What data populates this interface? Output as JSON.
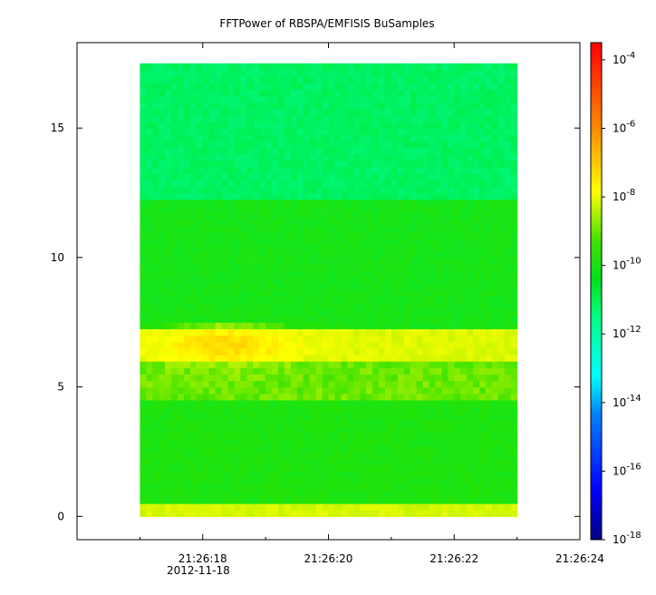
{
  "chart_data": {
    "type": "heatmap",
    "title": "FFTPower of RBSPA/EMFISIS  BuSamples",
    "xlabel": "",
    "ylabel": "",
    "x_tick_labels": [
      "21:26:18",
      "21:26:20",
      "21:26:22",
      "21:26:24"
    ],
    "x_tick_values_sec": [
      18,
      20,
      22,
      24
    ],
    "x_minor_ticks_sec": [
      17,
      19,
      21,
      23
    ],
    "x_date_label": "2012-11-18",
    "xlim_sec": [
      16.0,
      24.0
    ],
    "data_x_range_sec": [
      17.0,
      23.0
    ],
    "y_tick_labels": [
      "0",
      "5",
      "10",
      "15"
    ],
    "y_tick_values": [
      0,
      5,
      10,
      15
    ],
    "ylim": [
      -0.9,
      18.3
    ],
    "data_y_range": [
      0,
      17.5
    ],
    "colorbar": {
      "scale": "log",
      "range_exponent": [
        -18,
        -3.5
      ],
      "tick_exponents": [
        -18,
        -16,
        -14,
        -12,
        -10,
        -8,
        -6,
        -4
      ],
      "tick_labels": [
        {
          "base": "10",
          "exp": "-18"
        },
        {
          "base": "10",
          "exp": "-16"
        },
        {
          "base": "10",
          "exp": "-14"
        },
        {
          "base": "10",
          "exp": "-12"
        },
        {
          "base": "10",
          "exp": "-10"
        },
        {
          "base": "10",
          "exp": "-8"
        },
        {
          "base": "10",
          "exp": "-6"
        },
        {
          "base": "10",
          "exp": "-4"
        }
      ]
    },
    "bands": [
      {
        "y_range": [
          0,
          0.6
        ],
        "log10_power": -8.6
      },
      {
        "y_range": [
          0.6,
          4.5
        ],
        "log10_power": -10.4
      },
      {
        "y_range": [
          4.5,
          5.9
        ],
        "log10_power": -9.6
      },
      {
        "y_range": [
          5.9,
          7.3
        ],
        "log10_power": -8.5
      },
      {
        "y_range": [
          7.3,
          12.2
        ],
        "log10_power": -10.6
      },
      {
        "y_range": [
          12.2,
          17.5
        ],
        "log10_power": -12.0
      }
    ],
    "hotspot": {
      "x_sec": 18.4,
      "y": 6.6,
      "log10_power": -7.4
    },
    "grid": false,
    "colors": {
      "frame": "#000000",
      "background": "#ffffff",
      "colormap": [
        "#000080",
        "#0000ff",
        "#00c0ff",
        "#00ff80",
        "#00e000",
        "#ffff00",
        "#ff8000",
        "#ff0000"
      ]
    }
  }
}
